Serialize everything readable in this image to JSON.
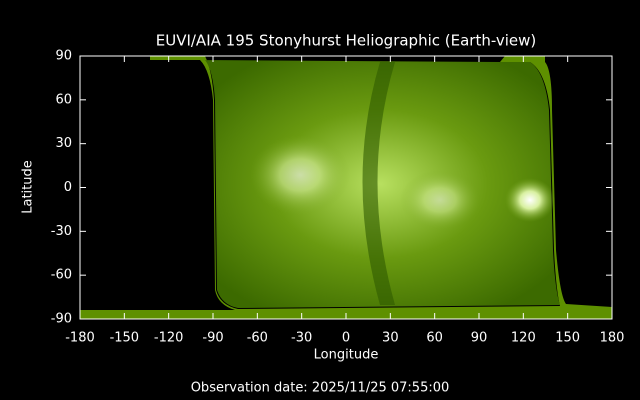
{
  "chart_data": {
    "type": "image",
    "title": "EUVI/AIA 195 Stonyhurst Heliographic (Earth-view)",
    "x_label": "Longitude",
    "y_label": "Latitude",
    "footer": "Observation date: 2025/11/25 07:55:00",
    "xlim": [
      -180,
      180
    ],
    "ylim": [
      -90,
      90
    ],
    "xticks": [
      -180,
      -150,
      -120,
      -90,
      -60,
      -30,
      0,
      30,
      60,
      90,
      120,
      150,
      180
    ],
    "yticks": [
      -90,
      -60,
      -30,
      0,
      30,
      60,
      90
    ]
  }
}
